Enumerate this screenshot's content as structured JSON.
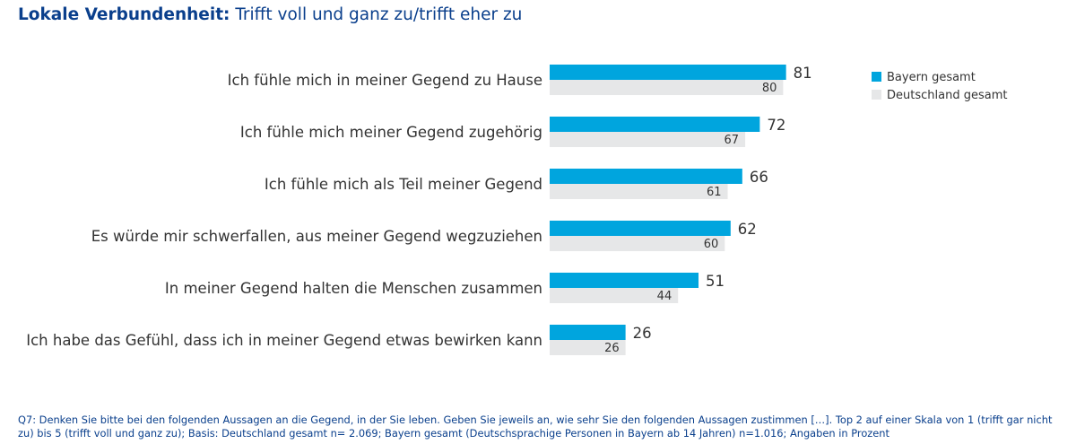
{
  "title": {
    "bold": "Lokale Verbundenheit:",
    "rest": "Trifft voll und ganz zu/trifft eher zu"
  },
  "chart_data": {
    "type": "bar",
    "orientation": "horizontal",
    "categories": [
      "Ich fühle mich in meiner Gegend zu Hause",
      "Ich fühle mich meiner Gegend zugehörig",
      "Ich fühle mich als Teil meiner Gegend",
      "Es würde mir schwerfallen, aus meiner Gegend wegzuziehen",
      "In meiner Gegend halten die Menschen zusammen",
      "Ich habe das Gefühl, dass ich in meiner Gegend etwas bewirken kann"
    ],
    "series": [
      {
        "name": "Bayern gesamt",
        "color": "#00a5de",
        "values": [
          81,
          72,
          66,
          62,
          51,
          26
        ]
      },
      {
        "name": "Deutschland gesamt",
        "color": "#e6e7e8",
        "values": [
          80,
          67,
          61,
          60,
          44,
          26
        ]
      }
    ],
    "xlim": [
      0,
      100
    ],
    "grid": false,
    "legend": "top-right"
  },
  "footnote": "Q7: Denken Sie bitte bei den folgenden Aussagen an die Gegend, in der Sie leben. Geben Sie jeweils an, wie sehr Sie den folgenden Aussagen zustimmen […]. Top 2 auf einer Skala von 1 (trifft gar nicht zu) bis 5 (trifft voll und ganz zu); Basis: Deutschland gesamt n= 2.069; Bayern gesamt (Deutschsprachige Personen in Bayern ab 14 Jahren) n=1.016; Angaben in Prozent"
}
